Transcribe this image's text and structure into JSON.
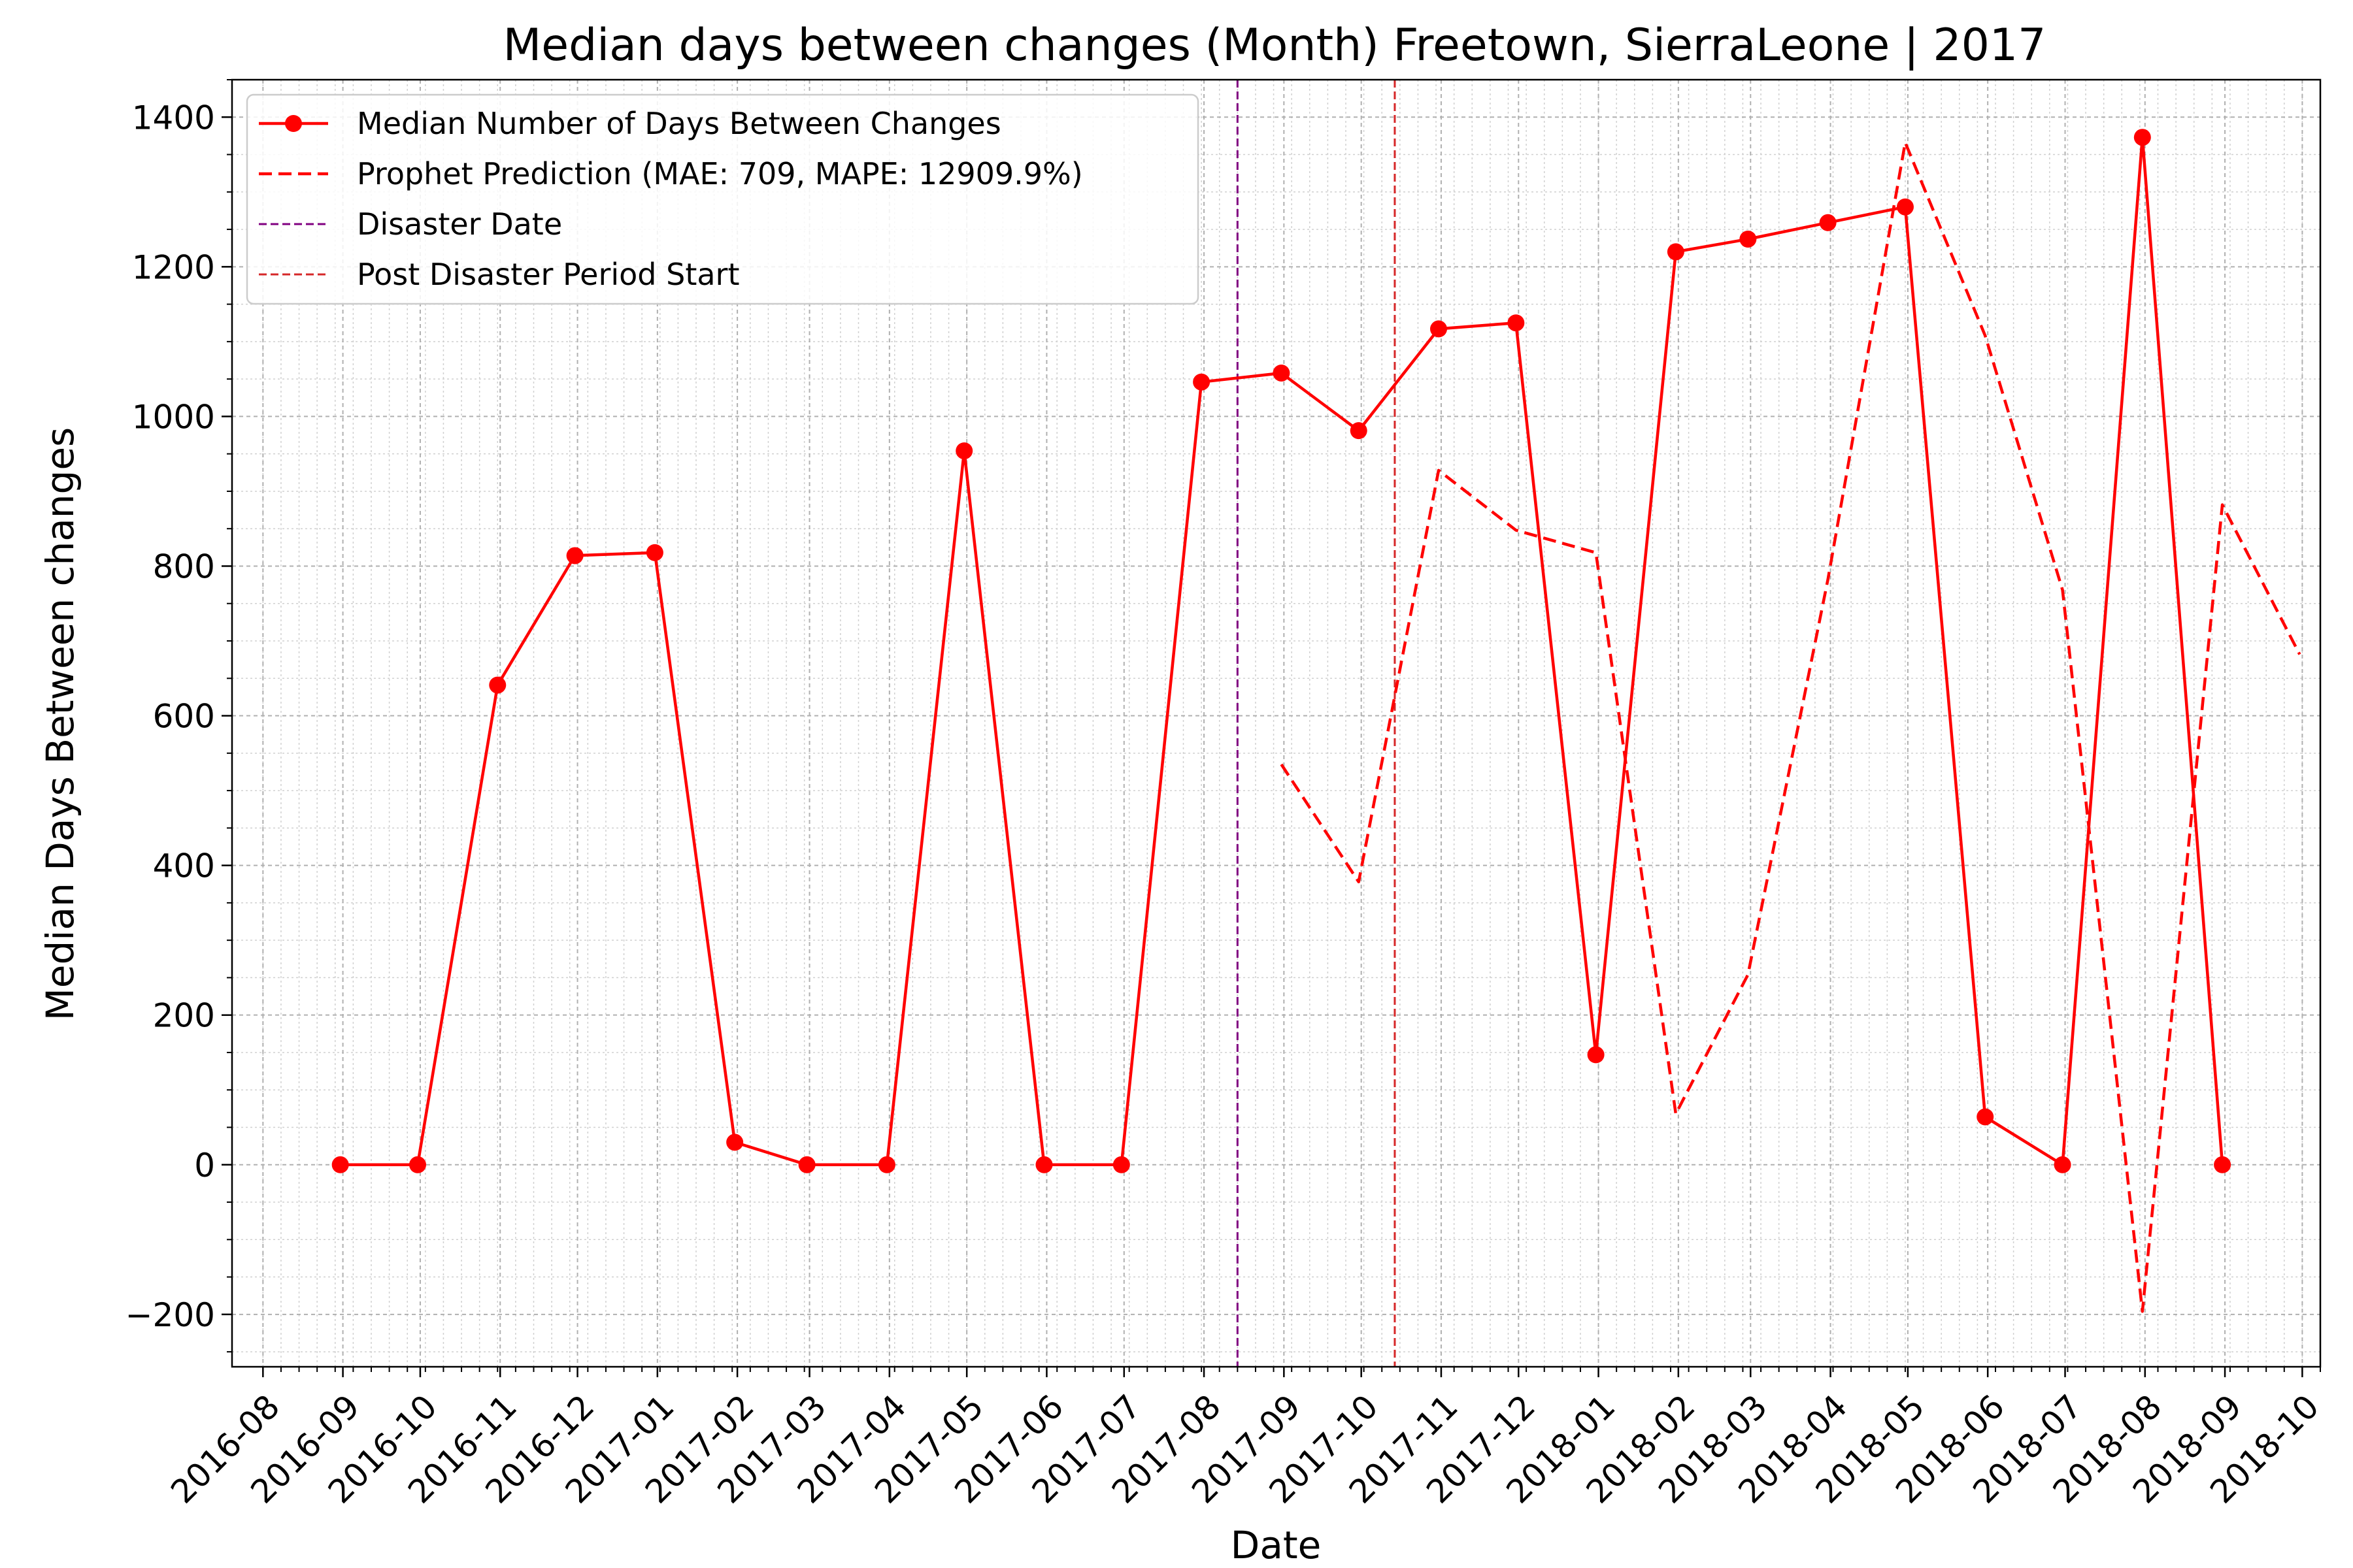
{
  "chart_data": {
    "type": "line",
    "title": "Median days between changes (Month) Freetown, SierraLeone | 2017",
    "xlabel": "Date",
    "ylabel": "Median Days Between changes",
    "ylim": [
      -270,
      1450
    ],
    "xlim": [
      "2016-07-20",
      "2018-10-08"
    ],
    "yticks": [
      -200,
      0,
      200,
      400,
      600,
      800,
      1000,
      1200,
      1400
    ],
    "ytick_labels": [
      "−200",
      "0",
      "200",
      "400",
      "600",
      "800",
      "1000",
      "1200",
      "1400"
    ],
    "xticks": [
      "2016-08",
      "2016-09",
      "2016-10",
      "2016-11",
      "2016-12",
      "2017-01",
      "2017-02",
      "2017-03",
      "2017-04",
      "2017-05",
      "2017-06",
      "2017-07",
      "2017-08",
      "2017-09",
      "2017-10",
      "2017-11",
      "2017-12",
      "2018-01",
      "2018-02",
      "2018-03",
      "2018-04",
      "2018-05",
      "2018-06",
      "2018-07",
      "2018-08",
      "2018-09",
      "2018-10"
    ],
    "grid": true,
    "legend_position": "top-left",
    "series": [
      {
        "name": "Median Number of Days Between Changes",
        "style": "solid-marker",
        "color": "#ff0000",
        "x": [
          "2016-08-31",
          "2016-09-30",
          "2016-10-31",
          "2016-11-30",
          "2016-12-31",
          "2017-01-31",
          "2017-02-28",
          "2017-03-31",
          "2017-04-30",
          "2017-05-31",
          "2017-06-30",
          "2017-07-31",
          "2017-08-31",
          "2017-09-30",
          "2017-10-31",
          "2017-11-30",
          "2017-12-31",
          "2018-01-31",
          "2018-02-28",
          "2018-03-31",
          "2018-04-30",
          "2018-05-31",
          "2018-06-30",
          "2018-07-31",
          "2018-08-31"
        ],
        "y": [
          0,
          0,
          641,
          814,
          818,
          30,
          0,
          0,
          954,
          0,
          0,
          1046,
          1058,
          981,
          1117,
          1125,
          147,
          1220,
          1237,
          1259,
          1280,
          64,
          0,
          1373,
          0
        ]
      },
      {
        "name": "Prophet Prediction (MAE: 709, MAPE: 12909.9%)",
        "style": "dashed",
        "color": "#ff0000",
        "x": [
          "2017-08-31",
          "2017-09-30",
          "2017-10-31",
          "2017-11-30",
          "2017-12-31",
          "2018-01-31",
          "2018-02-28",
          "2018-03-31",
          "2018-04-30",
          "2018-05-31",
          "2018-06-30",
          "2018-07-31",
          "2018-08-31",
          "2018-09-30"
        ],
        "y": [
          535,
          378,
          928,
          848,
          818,
          68,
          254,
          782,
          1366,
          1108,
          768,
          -196,
          882,
          682
        ]
      }
    ],
    "vlines": [
      {
        "name": "Disaster Date",
        "x": "2017-08-14",
        "color": "#800080"
      },
      {
        "name": "Post Disaster Period Start",
        "x": "2017-10-14",
        "color": "#d62728"
      }
    ]
  }
}
